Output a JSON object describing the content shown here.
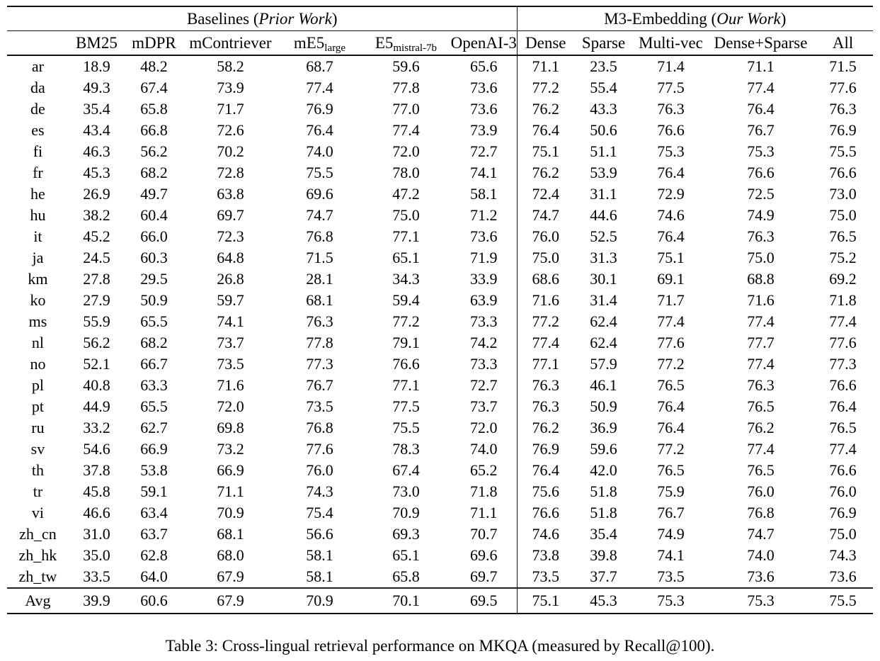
{
  "table": {
    "group_headers": {
      "baselines": {
        "prefix": "Baselines (",
        "italic": "Prior Work",
        "suffix": ")"
      },
      "m3": {
        "prefix": "M3-Embedding (",
        "italic": "Our Work",
        "suffix": ")"
      }
    },
    "columns": [
      {
        "label": "BM25",
        "sub": ""
      },
      {
        "label": "mDPR",
        "sub": ""
      },
      {
        "label": "mContriever",
        "sub": ""
      },
      {
        "label": "mE5",
        "sub": "large"
      },
      {
        "label": "E5",
        "sub": "mistral-7b"
      },
      {
        "label": "OpenAI-3",
        "sub": ""
      },
      {
        "label": "Dense",
        "sub": ""
      },
      {
        "label": "Sparse",
        "sub": ""
      },
      {
        "label": "Multi-vec",
        "sub": ""
      },
      {
        "label": "Dense+Sparse",
        "sub": ""
      },
      {
        "label": "All",
        "sub": ""
      }
    ],
    "rows": [
      {
        "lang": "ar",
        "values": [
          "18.9",
          "48.2",
          "58.2",
          "68.7",
          "59.6",
          "65.6",
          "71.1",
          "23.5",
          "71.4",
          "71.1",
          "71.5"
        ],
        "bold": [
          10
        ]
      },
      {
        "lang": "da",
        "values": [
          "49.3",
          "67.4",
          "73.9",
          "77.4",
          "77.8",
          "73.6",
          "77.2",
          "55.4",
          "77.5",
          "77.4",
          "77.6"
        ],
        "bold": [
          4
        ]
      },
      {
        "lang": "de",
        "values": [
          "35.4",
          "65.8",
          "71.7",
          "76.9",
          "77.0",
          "73.6",
          "76.2",
          "43.3",
          "76.3",
          "76.4",
          "76.3"
        ],
        "bold": [
          4
        ]
      },
      {
        "lang": "es",
        "values": [
          "43.4",
          "66.8",
          "72.6",
          "76.4",
          "77.4",
          "73.9",
          "76.4",
          "50.6",
          "76.6",
          "76.7",
          "76.9"
        ],
        "bold": [
          4
        ]
      },
      {
        "lang": "fi",
        "values": [
          "46.3",
          "56.2",
          "70.2",
          "74.0",
          "72.0",
          "72.7",
          "75.1",
          "51.1",
          "75.3",
          "75.3",
          "75.5"
        ],
        "bold": [
          10
        ]
      },
      {
        "lang": "fr",
        "values": [
          "45.3",
          "68.2",
          "72.8",
          "75.5",
          "78.0",
          "74.1",
          "76.2",
          "53.9",
          "76.4",
          "76.6",
          "76.6"
        ],
        "bold": [
          4
        ]
      },
      {
        "lang": "he",
        "values": [
          "26.9",
          "49.7",
          "63.8",
          "69.6",
          "47.2",
          "58.1",
          "72.4",
          "31.1",
          "72.9",
          "72.5",
          "73.0"
        ],
        "bold": [
          10
        ]
      },
      {
        "lang": "hu",
        "values": [
          "38.2",
          "60.4",
          "69.7",
          "74.7",
          "75.0",
          "71.2",
          "74.7",
          "44.6",
          "74.6",
          "74.9",
          "75.0"
        ],
        "bold": [
          4,
          10
        ]
      },
      {
        "lang": "it",
        "values": [
          "45.2",
          "66.0",
          "72.3",
          "76.8",
          "77.1",
          "73.6",
          "76.0",
          "52.5",
          "76.4",
          "76.3",
          "76.5"
        ],
        "bold": [
          4
        ]
      },
      {
        "lang": "ja",
        "values": [
          "24.5",
          "60.3",
          "64.8",
          "71.5",
          "65.1",
          "71.9",
          "75.0",
          "31.3",
          "75.1",
          "75.0",
          "75.2"
        ],
        "bold": [
          10
        ]
      },
      {
        "lang": "km",
        "values": [
          "27.8",
          "29.5",
          "26.8",
          "28.1",
          "34.3",
          "33.9",
          "68.6",
          "30.1",
          "69.1",
          "68.8",
          "69.2"
        ],
        "bold": [
          10
        ]
      },
      {
        "lang": "ko",
        "values": [
          "27.9",
          "50.9",
          "59.7",
          "68.1",
          "59.4",
          "63.9",
          "71.6",
          "31.4",
          "71.7",
          "71.6",
          "71.8"
        ],
        "bold": [
          10
        ]
      },
      {
        "lang": "ms",
        "values": [
          "55.9",
          "65.5",
          "74.1",
          "76.3",
          "77.2",
          "73.3",
          "77.2",
          "62.4",
          "77.4",
          "77.4",
          "77.4"
        ],
        "bold": [
          8,
          9,
          10
        ]
      },
      {
        "lang": "nl",
        "values": [
          "56.2",
          "68.2",
          "73.7",
          "77.8",
          "79.1",
          "74.2",
          "77.4",
          "62.4",
          "77.6",
          "77.7",
          "77.6"
        ],
        "bold": [
          4
        ]
      },
      {
        "lang": "no",
        "values": [
          "52.1",
          "66.7",
          "73.5",
          "77.3",
          "76.6",
          "73.3",
          "77.1",
          "57.9",
          "77.2",
          "77.4",
          "77.3"
        ],
        "bold": [
          9
        ]
      },
      {
        "lang": "pl",
        "values": [
          "40.8",
          "63.3",
          "71.6",
          "76.7",
          "77.1",
          "72.7",
          "76.3",
          "46.1",
          "76.5",
          "76.3",
          "76.6"
        ],
        "bold": [
          4
        ]
      },
      {
        "lang": "pt",
        "values": [
          "44.9",
          "65.5",
          "72.0",
          "73.5",
          "77.5",
          "73.7",
          "76.3",
          "50.9",
          "76.4",
          "76.5",
          "76.4"
        ],
        "bold": [
          4
        ]
      },
      {
        "lang": "ru",
        "values": [
          "33.2",
          "62.7",
          "69.8",
          "76.8",
          "75.5",
          "72.0",
          "76.2",
          "36.9",
          "76.4",
          "76.2",
          "76.5"
        ],
        "bold": [
          3
        ]
      },
      {
        "lang": "sv",
        "values": [
          "54.6",
          "66.9",
          "73.2",
          "77.6",
          "78.3",
          "74.0",
          "76.9",
          "59.6",
          "77.2",
          "77.4",
          "77.4"
        ],
        "bold": [
          4
        ]
      },
      {
        "lang": "th",
        "values": [
          "37.8",
          "53.8",
          "66.9",
          "76.0",
          "67.4",
          "65.2",
          "76.4",
          "42.0",
          "76.5",
          "76.5",
          "76.6"
        ],
        "bold": [
          10
        ]
      },
      {
        "lang": "tr",
        "values": [
          "45.8",
          "59.1",
          "71.1",
          "74.3",
          "73.0",
          "71.8",
          "75.6",
          "51.8",
          "75.9",
          "76.0",
          "76.0"
        ],
        "bold": [
          9,
          10
        ]
      },
      {
        "lang": "vi",
        "values": [
          "46.6",
          "63.4",
          "70.9",
          "75.4",
          "70.9",
          "71.1",
          "76.6",
          "51.8",
          "76.7",
          "76.8",
          "76.9"
        ],
        "bold": [
          10
        ]
      },
      {
        "lang": "zh_cn",
        "values": [
          "31.0",
          "63.7",
          "68.1",
          "56.6",
          "69.3",
          "70.7",
          "74.6",
          "35.4",
          "74.9",
          "74.7",
          "75.0"
        ],
        "bold": [
          10
        ]
      },
      {
        "lang": "zh_hk",
        "values": [
          "35.0",
          "62.8",
          "68.0",
          "58.1",
          "65.1",
          "69.6",
          "73.8",
          "39.8",
          "74.1",
          "74.0",
          "74.3"
        ],
        "bold": [
          10
        ]
      },
      {
        "lang": "zh_tw",
        "values": [
          "33.5",
          "64.0",
          "67.9",
          "58.1",
          "65.8",
          "69.7",
          "73.5",
          "37.7",
          "73.5",
          "73.6",
          "73.6"
        ],
        "bold": [
          9,
          10
        ]
      }
    ],
    "avg_row": {
      "lang": "Avg",
      "values": [
        "39.9",
        "60.6",
        "67.9",
        "70.9",
        "70.1",
        "69.5",
        "75.1",
        "45.3",
        "75.3",
        "75.3",
        "75.5"
      ],
      "bold": [
        10
      ]
    }
  },
  "caption": "Table 3: Cross-lingual retrieval performance on MKQA (measured by Recall@100)."
}
